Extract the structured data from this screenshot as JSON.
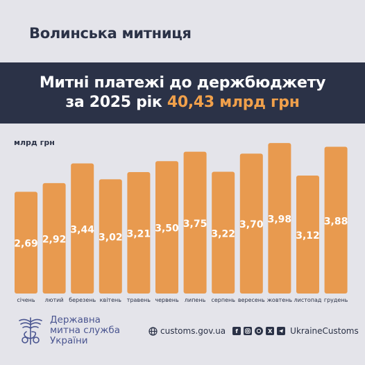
{
  "header": {
    "org": "Волинська митниця"
  },
  "banner": {
    "line1": "Митні платежі до держбюджету",
    "line2_prefix": "за 2025 рік",
    "line2_accent": "40,43 млрд грн"
  },
  "chart_data": {
    "type": "bar",
    "ylabel": "млрд грн",
    "categories": [
      "січень",
      "лютий",
      "березень",
      "квітень",
      "травень",
      "червень",
      "липень",
      "серпень",
      "вересень",
      "жовтень",
      "листопад",
      "грудень"
    ],
    "values": [
      2.69,
      2.92,
      3.44,
      3.02,
      3.21,
      3.5,
      3.75,
      3.22,
      3.7,
      3.98,
      3.12,
      3.88
    ],
    "value_labels": [
      "2,69",
      "2,92",
      "3,44",
      "3,02",
      "3,21",
      "3,50",
      "3,75",
      "3,22",
      "3,70",
      "3,98",
      "3,12",
      "3,88"
    ],
    "ylim": [
      0,
      4.0
    ],
    "grid": false,
    "bar_color": "#e89a4f"
  },
  "footer": {
    "org_lines": [
      "Державна",
      "митна служба",
      "України"
    ],
    "website": "customs.gov.ua",
    "social_icons": [
      "facebook-icon",
      "instagram-icon",
      "whatsapp-icon",
      "x-icon",
      "telegram-icon"
    ],
    "handle": "UkraineCustoms"
  },
  "colors": {
    "navy": "#2b3247",
    "accent": "#f0a04b",
    "background": "#e4e4ea",
    "footer_blue": "#4a5590"
  }
}
